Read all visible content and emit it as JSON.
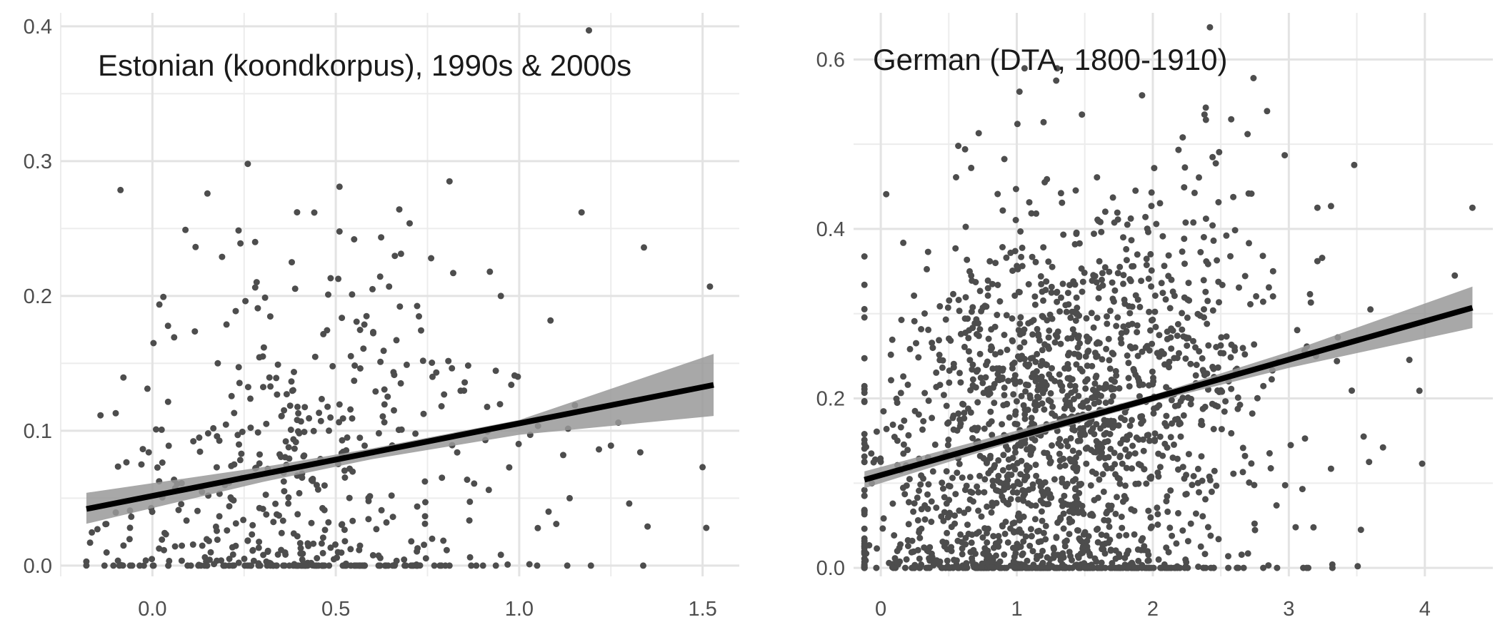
{
  "chart_data": [
    {
      "type": "scatter",
      "title": "Estonian (koondkorpus), 1990s & 2000s",
      "xlabel": "",
      "ylabel": "",
      "xlim": [
        -0.25,
        1.6
      ],
      "ylim": [
        -0.008,
        0.41
      ],
      "x_ticks": [
        "0.0",
        "0.5",
        "1.0",
        "1.5"
      ],
      "y_ticks": [
        "0.0",
        "0.1",
        "0.2",
        "0.3",
        "0.4"
      ],
      "grid": true,
      "point_color": "#4d4d4d",
      "fit_line": {
        "x": [
          -0.18,
          1.53
        ],
        "y": [
          0.042,
          0.134
        ],
        "color": "#000000"
      },
      "confidence_band": {
        "x": [
          -0.18,
          0.3,
          0.6,
          1.0,
          1.53
        ],
        "lower": [
          0.031,
          0.062,
          0.079,
          0.097,
          0.111
        ],
        "upper": [
          0.054,
          0.073,
          0.087,
          0.108,
          0.157
        ],
        "color": "#999999"
      },
      "series": [
        {
          "seed": 7,
          "n": 520,
          "x_mean": 0.42,
          "x_sd": 0.26,
          "x_min": -0.18,
          "x_max": 1.53,
          "y_scale": 0.075,
          "y_max": 0.41,
          "zero_fraction": 0.18,
          "points": [
            [
              1.19,
              0.397
            ],
            [
              0.26,
              0.298
            ],
            [
              0.81,
              0.285
            ],
            [
              0.51,
              0.281
            ],
            [
              0.15,
              0.276
            ],
            [
              1.17,
              0.262
            ],
            [
              0.09,
              0.249
            ],
            [
              0.55,
              0.242
            ],
            [
              1.34,
              0.236
            ],
            [
              0.28,
              0.24
            ],
            [
              0.24,
              0.239
            ],
            [
              0.76,
              0.228
            ],
            [
              0.19,
              0.229
            ],
            [
              0.38,
              0.225
            ],
            [
              0.82,
              0.217
            ],
            [
              0.92,
              0.218
            ],
            [
              1.52,
              0.207
            ],
            [
              0.95,
              0.2
            ],
            [
              0.6,
              0.205
            ],
            [
              1.5,
              0.073
            ],
            [
              1.35,
              0.029
            ],
            [
              1.3,
              0.046
            ],
            [
              1.25,
              0.089
            ],
            [
              1.51,
              0.028
            ],
            [
              1.33,
              0.084
            ],
            [
              1.12,
              0.082
            ],
            [
              1.08,
              0.04
            ],
            [
              1.03,
              0.097
            ],
            [
              -0.17,
              0.017
            ],
            [
              -0.15,
              0.027
            ],
            [
              -0.1,
              0.113
            ],
            [
              -0.09,
              0.0
            ],
            [
              -0.03,
              0.075
            ],
            [
              -0.01,
              0.084
            ],
            [
              0.01,
              0.101
            ],
            [
              0.95,
              0.008
            ]
          ]
        }
      ]
    },
    {
      "type": "scatter",
      "title": "German (DTA, 1800-1910)",
      "xlabel": "",
      "ylabel": "",
      "xlim": [
        -0.2,
        4.5
      ],
      "ylim": [
        -0.01,
        0.655
      ],
      "x_ticks": [
        "0",
        "1",
        "2",
        "3",
        "4"
      ],
      "y_ticks": [
        "0.0",
        "0.2",
        "0.4",
        "0.6"
      ],
      "grid": true,
      "point_color": "#4d4d4d",
      "fit_line": {
        "x": [
          -0.12,
          4.35
        ],
        "y": [
          0.104,
          0.307
        ],
        "color": "#000000"
      },
      "confidence_band": {
        "x": [
          -0.12,
          1.0,
          2.0,
          3.0,
          4.35
        ],
        "lower": [
          0.094,
          0.15,
          0.196,
          0.236,
          0.283
        ],
        "upper": [
          0.114,
          0.162,
          0.204,
          0.255,
          0.332
        ],
        "color": "#999999"
      },
      "series": [
        {
          "seed": 21,
          "n": 1850,
          "x_mean": 1.35,
          "x_sd": 0.72,
          "x_min": -0.12,
          "x_max": 4.35,
          "y_scale": 0.13,
          "y_max": 0.655,
          "zero_fraction": 0.09,
          "points": [
            [
              2.42,
              0.638
            ],
            [
              2.74,
              0.578
            ],
            [
              1.29,
              0.575
            ],
            [
              1.02,
              0.562
            ],
            [
              2.84,
              0.539
            ],
            [
              2.38,
              0.535
            ],
            [
              0.72,
              0.513
            ],
            [
              0.57,
              0.498
            ],
            [
              0.62,
              0.494
            ],
            [
              2.97,
              0.487
            ],
            [
              2.22,
              0.508
            ],
            [
              4.35,
              0.425
            ],
            [
              4.22,
              0.345
            ],
            [
              3.96,
              0.209
            ],
            [
              3.98,
              0.123
            ],
            [
              3.55,
              0.155
            ],
            [
              3.53,
              0.045
            ],
            [
              3.59,
              0.125
            ],
            [
              3.6,
              0.305
            ],
            [
              3.36,
              0.272
            ],
            [
              3.31,
              0.117
            ],
            [
              3.32,
              0.004
            ],
            [
              3.21,
              0.362
            ],
            [
              3.31,
              0.427
            ],
            [
              0.04,
              0.441
            ],
            [
              -0.07,
              0.135
            ],
            [
              3.05,
              0.048
            ],
            [
              3.1,
              0.093
            ],
            [
              2.85,
              0.003
            ],
            [
              2.7,
              0.017
            ],
            [
              3.21,
              0.425
            ],
            [
              3.2,
              0.25
            ]
          ]
        }
      ]
    }
  ]
}
